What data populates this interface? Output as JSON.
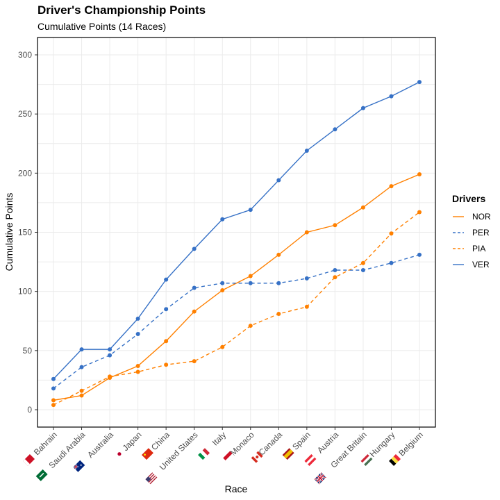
{
  "chart_data": {
    "type": "line",
    "title": "Driver's Championship Points",
    "subtitle": "Cumulative Points (14 Races)",
    "xlabel": "Race",
    "ylabel": "Cumulative Points",
    "ylim": [
      -15,
      315
    ],
    "yticks": [
      0,
      50,
      100,
      150,
      200,
      250,
      300
    ],
    "grid": true,
    "legend_title": "Drivers",
    "legend_position": "right",
    "categories": [
      "Bahrain",
      "Saudi Arabia",
      "Australia",
      "Japan",
      "China",
      "United States",
      "Italy",
      "Monaco",
      "Canada",
      "Spain",
      "Austria",
      "Great Britain",
      "Hungary",
      "Belgium"
    ],
    "flags": [
      "flag-bahrain-icon",
      "flag-saudi-arabia-icon",
      "flag-australia-icon",
      "flag-japan-icon",
      "flag-china-icon",
      "flag-united-states-icon",
      "flag-italy-icon",
      "flag-monaco-icon",
      "flag-canada-icon",
      "flag-spain-icon",
      "flag-austria-icon",
      "flag-great-britain-icon",
      "flag-hungary-icon",
      "flag-belgium-icon"
    ],
    "series": [
      {
        "name": "NOR",
        "color": "#FF8000",
        "dash": "solid",
        "values": [
          8,
          12,
          27,
          37,
          58,
          83,
          101,
          113,
          131,
          150,
          156,
          171,
          189,
          199
        ]
      },
      {
        "name": "PER",
        "color": "#3671C6",
        "dash": "dashed",
        "values": [
          18,
          36,
          46,
          64,
          85,
          103,
          107,
          107,
          107,
          111,
          118,
          118,
          124,
          131
        ]
      },
      {
        "name": "PIA",
        "color": "#FF8000",
        "dash": "dashed",
        "values": [
          4,
          16,
          28,
          32,
          38,
          41,
          53,
          71,
          81,
          87,
          112,
          124,
          149,
          167
        ]
      },
      {
        "name": "VER",
        "color": "#3671C6",
        "dash": "solid",
        "values": [
          26,
          51,
          51,
          77,
          110,
          136,
          161,
          169,
          194,
          219,
          237,
          255,
          265,
          277
        ]
      }
    ]
  }
}
